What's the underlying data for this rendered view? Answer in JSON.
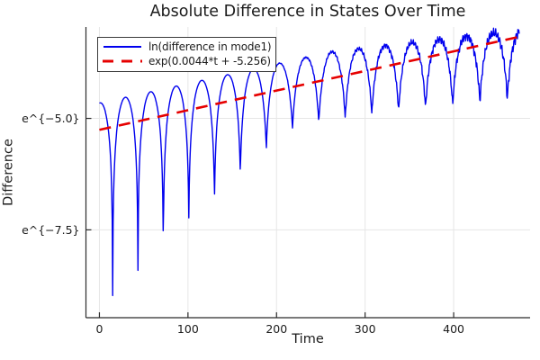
{
  "chart_data": {
    "type": "line",
    "title": "Absolute Difference in States Over Time",
    "xlabel": "Time",
    "ylabel": "Difference",
    "x_ticks": [
      0,
      100,
      200,
      300,
      400
    ],
    "y_ticks": [
      {
        "value": -5.0,
        "label": "e^{−5.0}"
      },
      {
        "value": -7.5,
        "label": "e^{−7.5}"
      }
    ],
    "xlim": [
      -15.2,
      486.3
    ],
    "ylim_ln": [
      -9.47,
      -2.95
    ],
    "grid": true,
    "legend_position": "top-left",
    "colors": {
      "background": "#ffffff",
      "grid": "#e6e6e6",
      "spine": "#2b2b2b",
      "text": "#1c1c1c"
    },
    "series": [
      {
        "name": "ln(difference in mode1)",
        "color": "#0000ee",
        "style": "solid",
        "model": {
          "kind": "ln_abs_damped_oscillation",
          "growth_slope": 0.0044,
          "growth_intercept": -5.256,
          "peak_offset": 0.6,
          "peak_offset_taper_start": 260,
          "peak_offset_end": 0.15,
          "dip_period_start": 28.3,
          "dip_period_drift": 0.006,
          "first_dip_t": 15.0,
          "floor_eps0": 0.009,
          "floor_eps_rate": 0.016,
          "floor_eps_max": 0.28,
          "noise_start_t": 180,
          "noise_max_amp": 0.13,
          "t_start": 0,
          "t_end": 474,
          "dt": 0.5
        }
      },
      {
        "name": "exp(0.0044*t + -5.256)",
        "color": "#e60000",
        "style": "dashed",
        "model": {
          "kind": "linear_in_ln",
          "slope": 0.0044,
          "intercept": -5.256,
          "t_start": 0,
          "t_end": 475
        }
      }
    ]
  }
}
